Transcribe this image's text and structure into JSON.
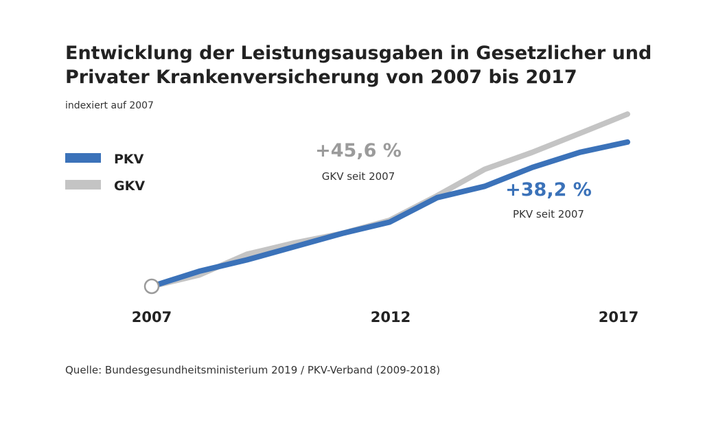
{
  "chart_data": {
    "type": "line",
    "title": "Entwicklung der Leistungsausgaben in Gesetzlicher und Privater Krankenversicherung von 2007 bis 2017",
    "subtitle": "indexiert auf 2007",
    "x": [
      2007,
      2008,
      2009,
      2010,
      2011,
      2012,
      2013,
      2014,
      2015,
      2016,
      2017
    ],
    "x_ticks": [
      "2007",
      "2012",
      "2017"
    ],
    "ylim": [
      100,
      150
    ],
    "series": [
      {
        "name": "PKV",
        "color": "#3b72b9",
        "values": [
          100,
          104,
          107,
          110.5,
          114,
          117,
          123.5,
          126.5,
          131.5,
          135.5,
          138.2
        ]
      },
      {
        "name": "GKV",
        "color": "#c4c4c4",
        "values": [
          100,
          103,
          108.5,
          111.5,
          114,
          117.5,
          124,
          131,
          135.5,
          140.5,
          145.6
        ]
      }
    ],
    "annotations": [
      {
        "series": "GKV",
        "value": "+45,6 %",
        "label": "GKV seit 2007",
        "color": "#9b9b9b"
      },
      {
        "series": "PKV",
        "value": "+38,2 %",
        "label": "PKV seit 2007",
        "color": "#3b72b9"
      }
    ],
    "legend_position": "top-left",
    "grid": false,
    "source": "Quelle: Bundesgesundheitsministerium 2019 / PKV-Verband (2009-2018)"
  }
}
